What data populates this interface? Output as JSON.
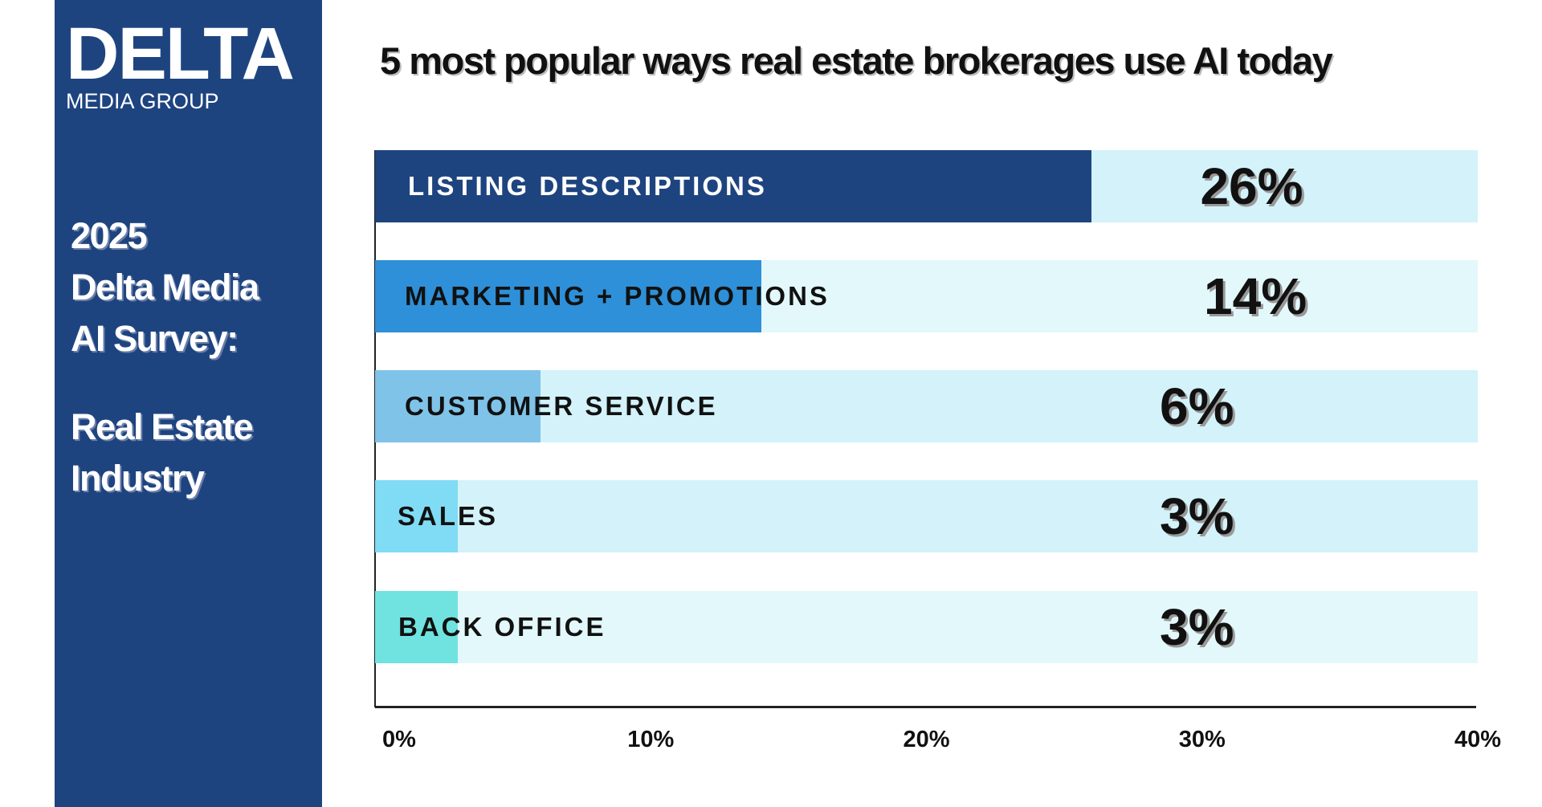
{
  "sidebar": {
    "logo": {
      "main": "DELTA",
      "sub": "MEDIA GROUP"
    },
    "lines": [
      "2025",
      "Delta Media",
      "AI Survey:",
      "Real Estate",
      "Industry"
    ]
  },
  "colors": {
    "sidebar": "#1e4480",
    "track": "#d3f2fa",
    "track_alt": "#e3f8fa"
  },
  "chart_data": {
    "type": "bar",
    "orientation": "horizontal",
    "title": "5 most popular ways real estate brokerages use AI today",
    "categories": [
      "LISTING DESCRIPTIONS",
      "MARKETING + PROMOTIONS",
      "CUSTOMER SERVICE",
      "SALES",
      "BACK OFFICE"
    ],
    "values": [
      26,
      14,
      6,
      3,
      3
    ],
    "value_labels": [
      "26%",
      "14%",
      "6%",
      "3%",
      "3%"
    ],
    "bar_colors": [
      "#1e4480",
      "#2e90d8",
      "#80c3e8",
      "#80dbf4",
      "#70e3e0"
    ],
    "xlim": [
      0,
      40
    ],
    "xticks": [
      "0%",
      "10%",
      "20%",
      "30%",
      "40%"
    ],
    "xlabel": "",
    "ylabel": "",
    "grid": false
  }
}
